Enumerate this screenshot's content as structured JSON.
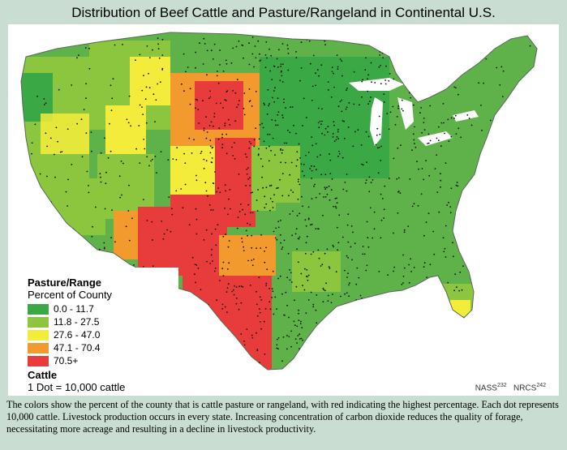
{
  "title": "Distribution of Beef Cattle and Pasture/Rangeland in Continental U.S.",
  "legend": {
    "title": "Pasture/Range",
    "subtitle": "Percent of County",
    "items": [
      {
        "label": "0.0 - 11.7",
        "color": "#3aa845"
      },
      {
        "label": "11.8 - 27.5",
        "color": "#8cc63f"
      },
      {
        "label": "27.6 - 47.0",
        "color": "#f4ec3a"
      },
      {
        "label": "47.1 - 70.4",
        "color": "#f39a2e"
      },
      {
        "label": "70.5+",
        "color": "#e83b3b"
      }
    ]
  },
  "cattle_legend": {
    "title": "Cattle",
    "subtitle": "1 Dot = 10,000 cattle"
  },
  "credits": {
    "nass": "NASS",
    "nass_ref": "232",
    "nrcs": "NRCS",
    "nrcs_ref": "242"
  },
  "caption": "The colors show the percent of the county that is cattle pasture or rangeland, with red indicating the highest percentage. Each dot represents 10,000 cattle. Livestock production occurs in every state. Increasing concentration of carbon dioxide reduces the quality of forage, necessitating more acreage and resulting in a decline in livestock productivity."
}
